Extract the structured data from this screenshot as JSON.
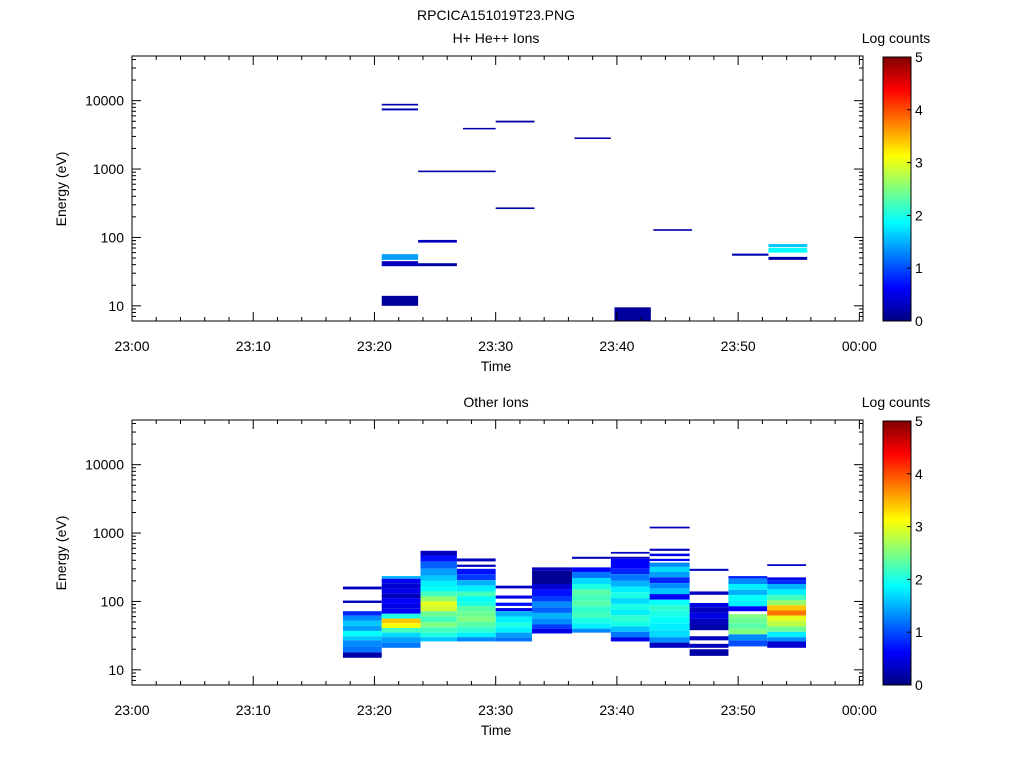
{
  "figure_title": "RPCICA151019T23.PNG",
  "chart_data": [
    {
      "type": "heatmap",
      "title": "H+ He++ Ions",
      "xlabel": "Time",
      "ylabel": "Energy (eV)",
      "y_scale": "log",
      "ylim": [
        6,
        45000
      ],
      "x_ticks": [
        "23:00",
        "23:10",
        "23:20",
        "23:30",
        "23:40",
        "23:50",
        "00:00"
      ],
      "x_range_min": [
        0,
        60.3
      ],
      "y_ticks": [
        {
          "value": 10,
          "label": "10"
        },
        {
          "value": 100,
          "label": "100"
        },
        {
          "value": 1000,
          "label": "1000"
        },
        {
          "value": 10000,
          "label": "10000"
        }
      ],
      "colorbar": {
        "label": "Log counts",
        "min": 0,
        "max": 5,
        "ticks": [
          "0",
          "1",
          "2",
          "3",
          "4",
          "5"
        ]
      },
      "cells": [
        {
          "t0": 20.6,
          "t1": 23.6,
          "e0": 8500,
          "e1": 9000,
          "v": 0.25
        },
        {
          "t0": 20.6,
          "t1": 23.6,
          "e0": 7200,
          "e1": 7700,
          "v": 0.25
        },
        {
          "t0": 27.3,
          "t1": 30.0,
          "e0": 3800,
          "e1": 4000,
          "v": 0.2
        },
        {
          "t0": 30.0,
          "t1": 33.2,
          "e0": 4800,
          "e1": 5100,
          "v": 0.2
        },
        {
          "t0": 36.5,
          "t1": 39.5,
          "e0": 2750,
          "e1": 2900,
          "v": 0.2
        },
        {
          "t0": 23.6,
          "t1": 30.0,
          "e0": 900,
          "e1": 950,
          "v": 0.2
        },
        {
          "t0": 30.0,
          "t1": 33.2,
          "e0": 260,
          "e1": 275,
          "v": 0.2
        },
        {
          "t0": 23.6,
          "t1": 26.8,
          "e0": 84,
          "e1": 92,
          "v": 0.3
        },
        {
          "t0": 20.6,
          "t1": 23.6,
          "e0": 47,
          "e1": 57,
          "v": 1.4
        },
        {
          "t0": 20.6,
          "t1": 23.6,
          "e0": 38,
          "e1": 45,
          "v": 0.3
        },
        {
          "t0": 23.6,
          "t1": 26.8,
          "e0": 38,
          "e1": 42,
          "v": 0.2
        },
        {
          "t0": 20.6,
          "t1": 23.6,
          "e0": 10,
          "e1": 14,
          "v": 0.15
        },
        {
          "t0": 39.8,
          "t1": 42.8,
          "e0": 6,
          "e1": 9.5,
          "v": 0.15
        },
        {
          "t0": 43.0,
          "t1": 46.2,
          "e0": 125,
          "e1": 132,
          "v": 0.2
        },
        {
          "t0": 49.5,
          "t1": 52.5,
          "e0": 54,
          "e1": 58,
          "v": 0.25
        },
        {
          "t0": 52.5,
          "t1": 55.7,
          "e0": 72,
          "e1": 80,
          "v": 1.6
        },
        {
          "t0": 52.5,
          "t1": 55.7,
          "e0": 60,
          "e1": 70,
          "v": 1.9
        },
        {
          "t0": 52.5,
          "t1": 55.7,
          "e0": 47,
          "e1": 52,
          "v": 0.2
        }
      ]
    },
    {
      "type": "heatmap",
      "title": "Other Ions",
      "xlabel": "Time",
      "ylabel": "Energy (eV)",
      "y_scale": "log",
      "ylim": [
        6,
        45000
      ],
      "x_ticks": [
        "23:00",
        "23:10",
        "23:20",
        "23:30",
        "23:40",
        "23:50",
        "00:00"
      ],
      "x_range_min": [
        0,
        60.3
      ],
      "y_ticks": [
        {
          "value": 10,
          "label": "10"
        },
        {
          "value": 100,
          "label": "100"
        },
        {
          "value": 1000,
          "label": "1000"
        },
        {
          "value": 10000,
          "label": "10000"
        }
      ],
      "colorbar": {
        "label": "Log counts",
        "min": 0,
        "max": 5,
        "ticks": [
          "0",
          "1",
          "2",
          "3",
          "4",
          "5"
        ]
      },
      "columns": [
        {
          "t0": 17.4,
          "t1": 20.6,
          "bins": [
            [
              150,
              165,
              0.3
            ],
            [
              95,
              103,
              0.3
            ],
            [
              62,
              72,
              0.8
            ],
            [
              52,
              62,
              1.3
            ],
            [
              44,
              52,
              1.6
            ],
            [
              37,
              44,
              1.4
            ],
            [
              31,
              37,
              1.9
            ],
            [
              27,
              31,
              1.6
            ],
            [
              22,
              27,
              1.3
            ],
            [
              18,
              22,
              1.2
            ],
            [
              15,
              18,
              0.2
            ]
          ]
        },
        {
          "t0": 20.6,
          "t1": 23.8,
          "bins": [
            [
              215,
              235,
              1.5
            ],
            [
              185,
              215,
              0.6
            ],
            [
              155,
              185,
              0.4
            ],
            [
              130,
              155,
              0.5
            ],
            [
              110,
              130,
              0.3
            ],
            [
              92,
              110,
              0.6
            ],
            [
              78,
              92,
              0.5
            ],
            [
              66,
              78,
              0.6
            ],
            [
              56,
              66,
              2.0
            ],
            [
              48,
              56,
              3.4
            ],
            [
              41,
              48,
              3.1
            ],
            [
              35,
              41,
              2.2
            ],
            [
              30,
              35,
              1.7
            ],
            [
              25,
              30,
              1.4
            ],
            [
              21,
              25,
              1.2
            ]
          ]
        },
        {
          "t0": 23.8,
          "t1": 26.8,
          "bins": [
            [
              470,
              550,
              0.3
            ],
            [
              380,
              470,
              0.7
            ],
            [
              300,
              380,
              1.1
            ],
            [
              240,
              300,
              1.4
            ],
            [
              200,
              240,
              1.6
            ],
            [
              165,
              200,
              1.8
            ],
            [
              140,
              165,
              1.9
            ],
            [
              118,
              140,
              2.2
            ],
            [
              100,
              118,
              2.6
            ],
            [
              86,
              100,
              3.0
            ],
            [
              72,
              86,
              2.9
            ],
            [
              60,
              72,
              2.4
            ],
            [
              50,
              60,
              2.2
            ],
            [
              42,
              50,
              2.5
            ],
            [
              35,
              42,
              2.2
            ],
            [
              30,
              35,
              2.0
            ],
            [
              26,
              30,
              1.6
            ]
          ]
        },
        {
          "t0": 26.8,
          "t1": 30.0,
          "bins": [
            [
              385,
              425,
              0.3
            ],
            [
              320,
              345,
              0.3
            ],
            [
              250,
              300,
              0.7
            ],
            [
              205,
              250,
              0.9
            ],
            [
              170,
              205,
              1.5
            ],
            [
              140,
              170,
              1.8
            ],
            [
              118,
              140,
              2.2
            ],
            [
              100,
              118,
              1.9
            ],
            [
              86,
              100,
              2.0
            ],
            [
              72,
              86,
              2.3
            ],
            [
              60,
              72,
              2.4
            ],
            [
              50,
              60,
              2.5
            ],
            [
              42,
              50,
              2.3
            ],
            [
              35,
              42,
              2.1
            ],
            [
              30,
              35,
              1.8
            ],
            [
              26,
              30,
              1.3
            ]
          ]
        },
        {
          "t0": 30.0,
          "t1": 33.0,
          "bins": [
            [
              155,
              170,
              0.3
            ],
            [
              110,
              122,
              0.5
            ],
            [
              86,
              96,
              0.7
            ],
            [
              72,
              80,
              0.5
            ],
            [
              60,
              72,
              1.5
            ],
            [
              50,
              60,
              1.8
            ],
            [
              42,
              50,
              2.0
            ],
            [
              35,
              42,
              1.8
            ],
            [
              30,
              35,
              1.4
            ],
            [
              26,
              30,
              1.2
            ]
          ]
        },
        {
          "t0": 33.0,
          "t1": 36.3,
          "bins": [
            [
              280,
              315,
              0.3
            ],
            [
              180,
              280,
              0.1
            ],
            [
              150,
              180,
              0.4
            ],
            [
              120,
              150,
              0.7
            ],
            [
              100,
              120,
              0.9
            ],
            [
              82,
              100,
              1.3
            ],
            [
              68,
              82,
              1.1
            ],
            [
              56,
              68,
              1.5
            ],
            [
              46,
              56,
              1.3
            ],
            [
              40,
              46,
              0.9
            ],
            [
              34,
              40,
              0.5
            ]
          ]
        },
        {
          "t0": 36.3,
          "t1": 39.5,
          "bins": [
            [
              420,
              450,
              0.3
            ],
            [
              270,
              315,
              0.6
            ],
            [
              220,
              270,
              1.2
            ],
            [
              180,
              220,
              1.7
            ],
            [
              150,
              180,
              2.0
            ],
            [
              124,
              150,
              2.3
            ],
            [
              102,
              124,
              2.2
            ],
            [
              85,
              102,
              2.3
            ],
            [
              70,
              85,
              2.1
            ],
            [
              58,
              70,
              2.2
            ],
            [
              48,
              58,
              2.0
            ],
            [
              40,
              48,
              1.8
            ],
            [
              35,
              40,
              1.3
            ]
          ]
        },
        {
          "t0": 39.5,
          "t1": 42.7,
          "bins": [
            [
              500,
              530,
              0.3
            ],
            [
              420,
              450,
              0.3
            ],
            [
              300,
              420,
              0.6
            ],
            [
              250,
              300,
              0.8
            ],
            [
              200,
              250,
              1.2
            ],
            [
              165,
              200,
              1.5
            ],
            [
              136,
              165,
              1.8
            ],
            [
              112,
              136,
              2.0
            ],
            [
              92,
              112,
              1.7
            ],
            [
              76,
              92,
              2.0
            ],
            [
              63,
              76,
              1.8
            ],
            [
              52,
              63,
              2.1
            ],
            [
              43,
              52,
              2.0
            ],
            [
              36,
              43,
              1.6
            ],
            [
              30,
              36,
              1.2
            ],
            [
              26,
              30,
              0.5
            ]
          ]
        },
        {
          "t0": 42.7,
          "t1": 46.0,
          "bins": [
            [
              1170,
              1240,
              0.3
            ],
            [
              550,
              590,
              0.3
            ],
            [
              460,
              500,
              0.5
            ],
            [
              390,
              420,
              0.6
            ],
            [
              320,
              370,
              1.3
            ],
            [
              270,
              320,
              1.7
            ],
            [
              225,
              270,
              1.4
            ],
            [
              185,
              225,
              0.8
            ],
            [
              155,
              185,
              1.3
            ],
            [
              128,
              155,
              1.6
            ],
            [
              106,
              128,
              0.6
            ],
            [
              88,
              106,
              1.9
            ],
            [
              73,
              88,
              2.1
            ],
            [
              60,
              73,
              2.0
            ],
            [
              48,
              60,
              1.9
            ],
            [
              38,
              48,
              1.8
            ],
            [
              30,
              38,
              1.7
            ],
            [
              25,
              30,
              1.3
            ],
            [
              21,
              25,
              0.3
            ]
          ]
        },
        {
          "t0": 46.0,
          "t1": 49.2,
          "bins": [
            [
              280,
              300,
              0.3
            ],
            [
              125,
              140,
              0.3
            ],
            [
              82,
              95,
              0.5
            ],
            [
              68,
              82,
              0.3
            ],
            [
              56,
              68,
              0.5
            ],
            [
              46,
              56,
              0.3
            ],
            [
              38,
              46,
              0.2
            ],
            [
              27,
              31,
              0.3
            ],
            [
              21,
              24,
              0.3
            ],
            [
              16,
              20,
              0.2
            ]
          ]
        },
        {
          "t0": 49.2,
          "t1": 52.4,
          "bins": [
            [
              215,
              235,
              0.8
            ],
            [
              180,
              215,
              1.3
            ],
            [
              148,
              180,
              1.8
            ],
            [
              124,
              148,
              1.5
            ],
            [
              102,
              124,
              1.9
            ],
            [
              85,
              102,
              1.8
            ],
            [
              72,
              85,
              0.6
            ],
            [
              58,
              65,
              2.5
            ],
            [
              48,
              58,
              2.4
            ],
            [
              40,
              48,
              2.3
            ],
            [
              33,
              40,
              2.5
            ],
            [
              27,
              33,
              1.3
            ],
            [
              22,
              27,
              1.0
            ]
          ]
        },
        {
          "t0": 52.4,
          "t1": 55.6,
          "bins": [
            [
              330,
              350,
              0.3
            ],
            [
              205,
              225,
              0.5
            ],
            [
              180,
              205,
              0.8
            ],
            [
              150,
              180,
              1.5
            ],
            [
              124,
              150,
              1.8
            ],
            [
              104,
              124,
              2.2
            ],
            [
              88,
              104,
              2.6
            ],
            [
              74,
              88,
              3.4
            ],
            [
              62,
              74,
              3.8
            ],
            [
              52,
              62,
              3.0
            ],
            [
              43,
              52,
              2.8
            ],
            [
              36,
              43,
              2.4
            ],
            [
              30,
              36,
              1.8
            ],
            [
              26,
              30,
              1.3
            ],
            [
              21,
              26,
              0.4
            ]
          ]
        }
      ]
    }
  ]
}
